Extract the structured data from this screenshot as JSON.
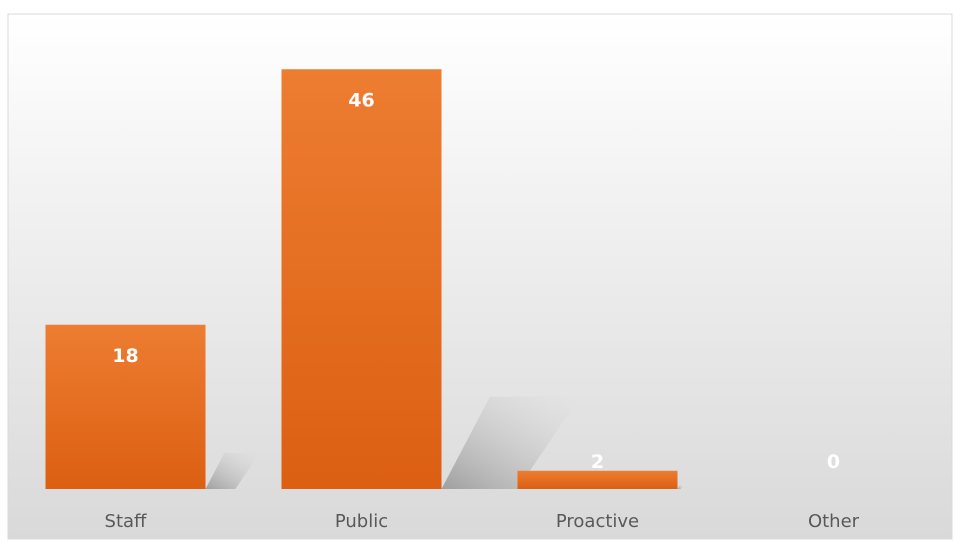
{
  "chart_data": {
    "type": "bar",
    "title": "",
    "categories": [
      "Staff",
      "Public",
      "Proactive",
      "Other"
    ],
    "values": [
      18,
      46,
      2,
      0
    ],
    "xlabel": "",
    "ylabel": "",
    "ylim": [
      0,
      48
    ],
    "grid": false,
    "legend": "none",
    "colors": {
      "bar_top": "#ed7d31",
      "bar_bottom": "#dc5f12",
      "value_label": "#ffffff",
      "category_label": "#595959",
      "background_top": "#ffffff",
      "background_bottom": "#d9d9d9"
    },
    "show_data_labels": true
  }
}
